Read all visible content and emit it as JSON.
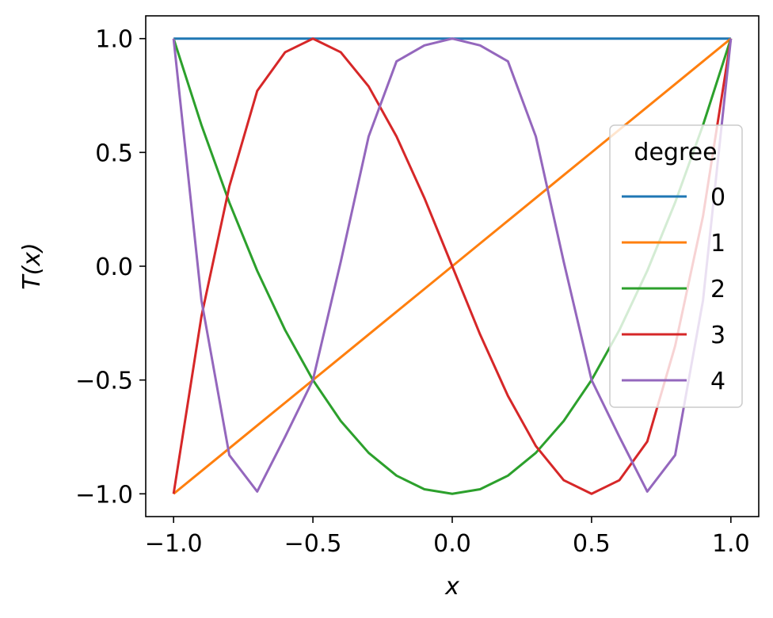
{
  "chart_data": {
    "type": "line",
    "title": "",
    "xlabel": "x",
    "ylabel": "T(x)",
    "xlim": [
      -1.1,
      1.1
    ],
    "ylim": [
      -1.1,
      1.1
    ],
    "xticks": [
      -1.0,
      -0.5,
      0.0,
      0.5,
      1.0
    ],
    "xtick_labels": [
      "−1.0",
      "−0.5",
      "0.0",
      "0.5",
      "1.0"
    ],
    "yticks": [
      -1.0,
      -0.5,
      0.0,
      0.5,
      1.0
    ],
    "ytick_labels": [
      "−1.0",
      "−0.5",
      "0.0",
      "0.5",
      "1.0"
    ],
    "grid": false,
    "legend": {
      "title": "degree",
      "placement": "center-right"
    },
    "x": [
      -1.0,
      -0.9,
      -0.8,
      -0.7,
      -0.6,
      -0.5,
      -0.4,
      -0.3,
      -0.2,
      -0.1,
      0.0,
      0.1,
      0.2,
      0.3,
      0.4,
      0.5,
      0.6,
      0.7,
      0.8,
      0.9,
      1.0
    ],
    "series": [
      {
        "name": "0",
        "color": "#1f77b4",
        "values": [
          1.0,
          1.0,
          1.0,
          1.0,
          1.0,
          1.0,
          1.0,
          1.0,
          1.0,
          1.0,
          1.0,
          1.0,
          1.0,
          1.0,
          1.0,
          1.0,
          1.0,
          1.0,
          1.0,
          1.0,
          1.0
        ]
      },
      {
        "name": "1",
        "color": "#ff7f0e",
        "values": [
          -1.0,
          -0.9,
          -0.8,
          -0.7,
          -0.6,
          -0.5,
          -0.4,
          -0.3,
          -0.2,
          -0.1,
          0.0,
          0.1,
          0.2,
          0.3,
          0.4,
          0.5,
          0.6,
          0.7,
          0.8,
          0.9,
          1.0
        ]
      },
      {
        "name": "2",
        "color": "#2ca02c",
        "values": [
          1.0,
          0.62,
          0.28,
          -0.02,
          -0.28,
          -0.5,
          -0.68,
          -0.82,
          -0.92,
          -0.98,
          -1.0,
          -0.98,
          -0.92,
          -0.82,
          -0.68,
          -0.5,
          -0.28,
          -0.02,
          0.28,
          0.62,
          1.0
        ]
      },
      {
        "name": "3",
        "color": "#d62728",
        "values": [
          -1.0,
          -0.22,
          0.35,
          0.77,
          0.94,
          1.0,
          0.94,
          0.79,
          0.57,
          0.3,
          0.0,
          -0.3,
          -0.57,
          -0.79,
          -0.94,
          -1.0,
          -0.94,
          -0.77,
          -0.35,
          0.22,
          1.0
        ]
      },
      {
        "name": "4",
        "color": "#9467bd",
        "values": [
          1.0,
          -0.15,
          -0.83,
          -0.99,
          -0.75,
          -0.5,
          0.02,
          0.57,
          0.9,
          0.97,
          1.0,
          0.97,
          0.9,
          0.57,
          0.02,
          -0.5,
          -0.75,
          -0.99,
          -0.83,
          -0.15,
          1.0
        ]
      }
    ]
  }
}
